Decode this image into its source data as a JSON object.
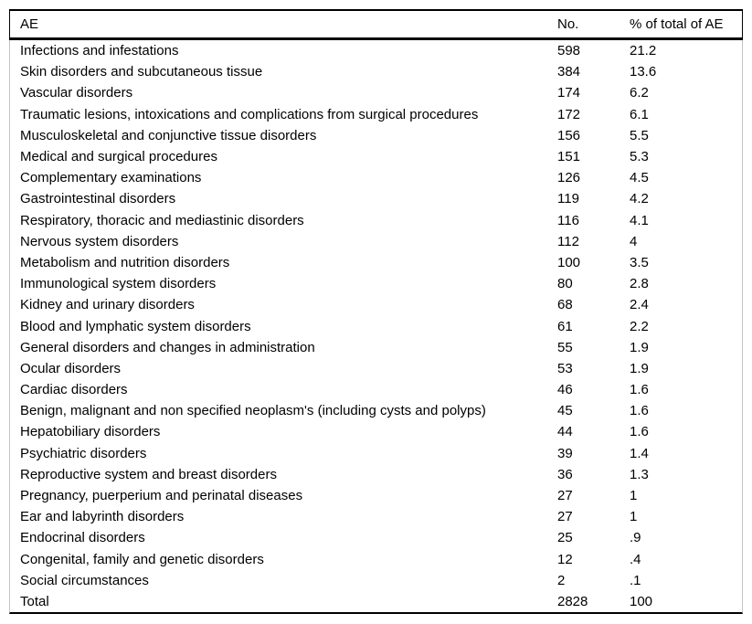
{
  "table": {
    "columns": [
      {
        "key": "ae",
        "label": "AE"
      },
      {
        "key": "no",
        "label": "No."
      },
      {
        "key": "pct",
        "label": "% of total of AE"
      }
    ],
    "rows": [
      [
        "Infections and infestations",
        "598",
        "21.2"
      ],
      [
        "Skin disorders and subcutaneous tissue",
        "384",
        "13.6"
      ],
      [
        "Vascular disorders",
        "174",
        "6.2"
      ],
      [
        "Traumatic lesions, intoxications and complications from surgical procedures",
        "172",
        "6.1"
      ],
      [
        "Musculoskeletal and conjunctive tissue disorders",
        "156",
        "5.5"
      ],
      [
        "Medical and surgical procedures",
        "151",
        "5.3"
      ],
      [
        "Complementary examinations",
        "126",
        "4.5"
      ],
      [
        "Gastrointestinal disorders",
        "119",
        "4.2"
      ],
      [
        "Respiratory, thoracic and mediastinic disorders",
        "116",
        "4.1"
      ],
      [
        "Nervous system disorders",
        "112",
        "4"
      ],
      [
        "Metabolism and nutrition disorders",
        "100",
        "3.5"
      ],
      [
        "Immunological system disorders",
        "80",
        "2.8"
      ],
      [
        "Kidney and urinary disorders",
        "68",
        "2.4"
      ],
      [
        "Blood and lymphatic system disorders",
        "61",
        "2.2"
      ],
      [
        "General disorders and changes in administration",
        "55",
        "1.9"
      ],
      [
        "Ocular disorders",
        "53",
        "1.9"
      ],
      [
        "Cardiac disorders",
        "46",
        "1.6"
      ],
      [
        "Benign, malignant and non specified neoplasm's (including cysts and polyps)",
        "45",
        "1.6"
      ],
      [
        "Hepatobiliary disorders",
        "44",
        "1.6"
      ],
      [
        "Psychiatric disorders",
        "39",
        "1.4"
      ],
      [
        "Reproductive system and breast disorders",
        "36",
        "1.3"
      ],
      [
        "Pregnancy, puerperium and perinatal diseases",
        "27",
        "1"
      ],
      [
        "Ear and labyrinth disorders",
        "27",
        "1"
      ],
      [
        "Endocrinal disorders",
        "25",
        ".9"
      ],
      [
        "Congenital, family and genetic disorders",
        "12",
        ".4"
      ],
      [
        "Social circumstances",
        "2",
        ".1"
      ],
      [
        "Total",
        "2828",
        "100"
      ]
    ],
    "colors": {
      "text": "#000000",
      "rule": "#000000",
      "side_rail": "#c4c4c4",
      "background": "#ffffff"
    }
  }
}
